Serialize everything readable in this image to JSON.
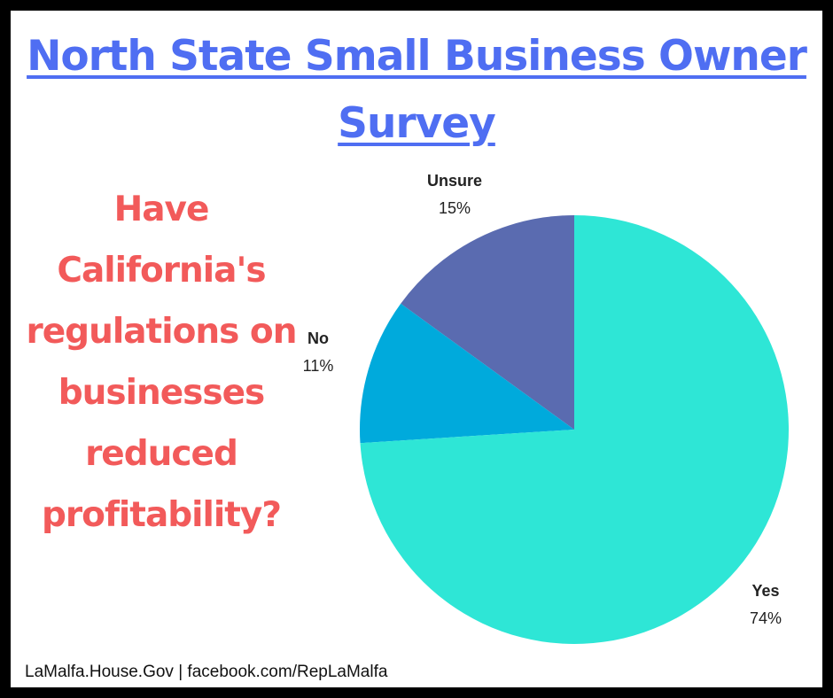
{
  "title": "North State Small Business Owner Survey",
  "question": "Have California's regulations on businesses reduced profitability?",
  "footer": "LaMalfa.House.Gov | facebook.com/RepLaMalfa",
  "colors": {
    "title": "#4f6ef2",
    "question": "#f25a5a",
    "yes": "#2ee6d6",
    "no": "#00aadc",
    "unsure": "#5a6bb0"
  },
  "chart_data": {
    "type": "pie",
    "title": "",
    "slices": [
      {
        "label": "Unsure",
        "value": 15,
        "display": "15%",
        "color": "#5a6bb0"
      },
      {
        "label": "No",
        "value": 11,
        "display": "11%",
        "color": "#00aadc"
      },
      {
        "label": "Yes",
        "value": 74,
        "display": "74%",
        "color": "#2ee6d6"
      }
    ],
    "legend": "none",
    "direction": "counterclockwise-from-top"
  }
}
